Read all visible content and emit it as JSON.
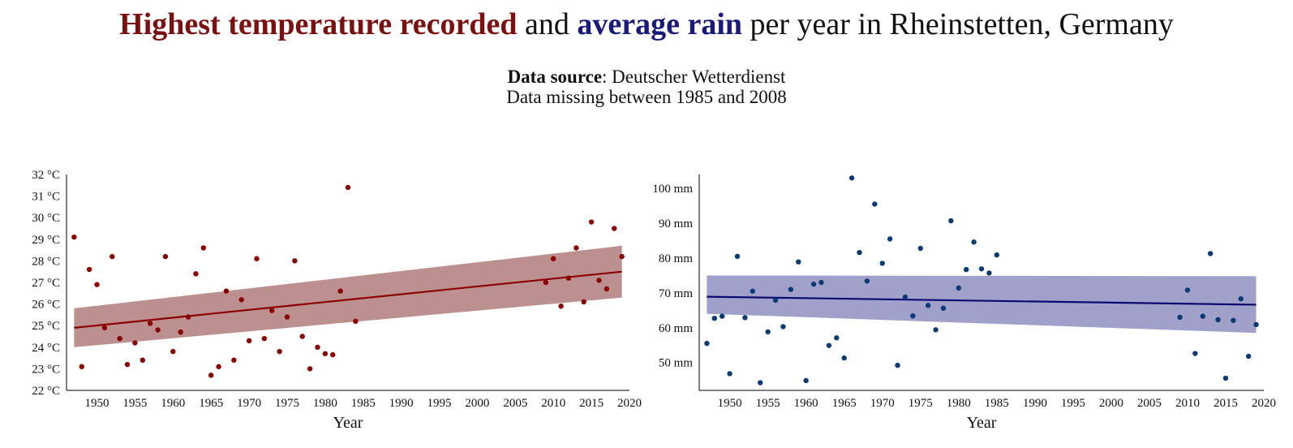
{
  "header": {
    "title_part1": "Highest temperature recorded",
    "title_part2": " and ",
    "title_part3": "average rain",
    "title_part4": " per year in Rheinstetten, Germany",
    "source_label": "Data source",
    "source_value": ": Deutscher Wetterdienst",
    "note": "Data missing between 1985 and 2008"
  },
  "colors": {
    "temperature": "#8b0000",
    "temperature_band": "#b98a8a",
    "rain": "#0b3a75",
    "rain_band": "#9b9bc8",
    "rain_line": "#0a0a70"
  },
  "chart_data": [
    {
      "type": "scatter",
      "title": "Highest temperature recorded",
      "xlabel": "Year",
      "ylabel": "",
      "xlim": [
        1946,
        2020
      ],
      "ylim": [
        22,
        32
      ],
      "xticks": [
        "1950",
        "1955",
        "1960",
        "1965",
        "1970",
        "1975",
        "1980",
        "1985",
        "1990",
        "1995",
        "2000",
        "2005",
        "2010",
        "2015",
        "2020"
      ],
      "yticks": [
        "22 °C",
        "23 °C",
        "24 °C",
        "25 °C",
        "26 °C",
        "27 °C",
        "28 °C",
        "29 °C",
        "30 °C",
        "31 °C",
        "32 °C"
      ],
      "grid": false,
      "series": [
        {
          "points": [
            [
              1947,
              29.1
            ],
            [
              1948,
              23.1
            ],
            [
              1949,
              27.6
            ],
            [
              1950,
              26.9
            ],
            [
              1951,
              24.9
            ],
            [
              1952,
              28.2
            ],
            [
              1953,
              24.4
            ],
            [
              1954,
              23.2
            ],
            [
              1955,
              24.2
            ],
            [
              1956,
              23.4
            ],
            [
              1957,
              25.1
            ],
            [
              1958,
              24.8
            ],
            [
              1959,
              28.2
            ],
            [
              1960,
              23.8
            ],
            [
              1961,
              24.7
            ],
            [
              1962,
              25.4
            ],
            [
              1963,
              27.4
            ],
            [
              1964,
              28.6
            ],
            [
              1965,
              22.7
            ],
            [
              1966,
              23.1
            ],
            [
              1967,
              26.6
            ],
            [
              1968,
              23.4
            ],
            [
              1969,
              26.2
            ],
            [
              1970,
              24.3
            ],
            [
              1971,
              28.1
            ],
            [
              1972,
              24.4
            ],
            [
              1973,
              25.7
            ],
            [
              1974,
              23.8
            ],
            [
              1975,
              25.4
            ],
            [
              1976,
              28.0
            ],
            [
              1977,
              24.5
            ],
            [
              1978,
              23.0
            ],
            [
              1979,
              24.0
            ],
            [
              1980,
              23.7
            ],
            [
              1981,
              23.65
            ],
            [
              1982,
              26.6
            ],
            [
              1983,
              31.4
            ],
            [
              1984,
              25.2
            ],
            [
              2009,
              27.0
            ],
            [
              2010,
              28.1
            ],
            [
              2011,
              25.9
            ],
            [
              2012,
              27.2
            ],
            [
              2013,
              28.6
            ],
            [
              2014,
              26.1
            ],
            [
              2015,
              29.8
            ],
            [
              2016,
              27.1
            ],
            [
              2017,
              26.7
            ],
            [
              2018,
              29.5
            ],
            [
              2019,
              28.2
            ]
          ]
        }
      ],
      "trend": {
        "from": [
          1947,
          24.9
        ],
        "to": [
          2019,
          27.5
        ]
      },
      "band": {
        "from": [
          1947,
          24.0,
          25.8
        ],
        "to": [
          2019,
          26.3,
          28.7
        ]
      }
    },
    {
      "type": "scatter",
      "title": "average rain",
      "xlabel": "Year",
      "ylabel": "",
      "xlim": [
        1946,
        2020
      ],
      "ylim": [
        42,
        104
      ],
      "xticks": [
        "1950",
        "1955",
        "1960",
        "1965",
        "1970",
        "1975",
        "1980",
        "1985",
        "1990",
        "1995",
        "2000",
        "2005",
        "2010",
        "2015",
        "2020"
      ],
      "yticks": [
        "50 mm",
        "60 mm",
        "70 mm",
        "80 mm",
        "90 mm",
        "100 mm"
      ],
      "grid": false,
      "series": [
        {
          "points": [
            [
              1947,
              55.5
            ],
            [
              1948,
              62.7
            ],
            [
              1949,
              63.3
            ],
            [
              1950,
              46.8
            ],
            [
              1951,
              80.5
            ],
            [
              1952,
              62.9
            ],
            [
              1953,
              70.5
            ],
            [
              1954,
              44.2
            ],
            [
              1955,
              58.8
            ],
            [
              1956,
              67.9
            ],
            [
              1957,
              60.3
            ],
            [
              1958,
              71.0
            ],
            [
              1959,
              78.9
            ],
            [
              1960,
              44.8
            ],
            [
              1961,
              72.5
            ],
            [
              1962,
              73.0
            ],
            [
              1963,
              54.9
            ],
            [
              1964,
              57.1
            ],
            [
              1965,
              51.3
            ],
            [
              1966,
              103.0
            ],
            [
              1967,
              81.6
            ],
            [
              1968,
              73.4
            ],
            [
              1969,
              95.5
            ],
            [
              1970,
              78.5
            ],
            [
              1971,
              85.5
            ],
            [
              1972,
              49.2
            ],
            [
              1973,
              68.8
            ],
            [
              1974,
              63.4
            ],
            [
              1975,
              82.8
            ],
            [
              1976,
              66.4
            ],
            [
              1977,
              59.4
            ],
            [
              1978,
              65.6
            ],
            [
              1979,
              90.7
            ],
            [
              1980,
              71.4
            ],
            [
              1981,
              76.7
            ],
            [
              1982,
              84.6
            ],
            [
              1983,
              76.9
            ],
            [
              1984,
              75.7
            ],
            [
              1985,
              80.9
            ],
            [
              2009,
              63.0
            ],
            [
              2010,
              70.8
            ],
            [
              2011,
              52.6
            ],
            [
              2012,
              63.3
            ],
            [
              2013,
              81.3
            ],
            [
              2014,
              62.3
            ],
            [
              2015,
              45.5
            ],
            [
              2016,
              62.1
            ],
            [
              2017,
              68.3
            ],
            [
              2018,
              51.8
            ],
            [
              2019,
              60.9
            ]
          ]
        }
      ],
      "trend": {
        "from": [
          1947,
          68.9
        ],
        "to": [
          2019,
          66.6
        ]
      },
      "band": {
        "from": [
          1947,
          64.0,
          75.0
        ],
        "to": [
          2019,
          58.5,
          74.8
        ]
      }
    }
  ]
}
